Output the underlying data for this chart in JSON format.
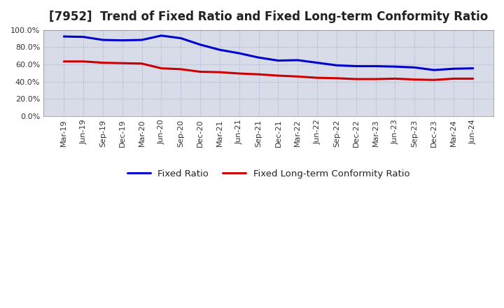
{
  "title": "[7952]  Trend of Fixed Ratio and Fixed Long-term Conformity Ratio",
  "x_labels": [
    "Mar-19",
    "Jun-19",
    "Sep-19",
    "Dec-19",
    "Mar-20",
    "Jun-20",
    "Sep-20",
    "Dec-20",
    "Mar-21",
    "Jun-21",
    "Sep-21",
    "Dec-21",
    "Mar-22",
    "Jun-22",
    "Sep-22",
    "Dec-22",
    "Mar-23",
    "Jun-23",
    "Sep-23",
    "Dec-23",
    "Mar-24",
    "Jun-24"
  ],
  "fixed_ratio": [
    92.5,
    92.0,
    88.5,
    88.0,
    88.5,
    93.5,
    90.5,
    83.0,
    77.0,
    73.0,
    68.0,
    64.5,
    65.0,
    62.0,
    59.0,
    58.0,
    58.0,
    57.5,
    56.5,
    53.5,
    55.0,
    55.5
  ],
  "fixed_lt_ratio": [
    63.5,
    63.5,
    62.0,
    61.5,
    61.0,
    55.5,
    54.5,
    51.5,
    51.0,
    49.5,
    48.5,
    47.0,
    46.0,
    44.5,
    44.0,
    43.0,
    43.0,
    43.5,
    42.5,
    42.0,
    43.5,
    43.5
  ],
  "fixed_ratio_color": "#0000cc",
  "fixed_lt_ratio_color": "#cc0000",
  "ylim": [
    0,
    100
  ],
  "yticks": [
    0,
    20,
    40,
    60,
    80,
    100
  ],
  "bg_color": "#ffffff",
  "plot_bg_color": "#d8dce8",
  "grid_color": "#aaaacc",
  "legend_fixed_ratio": "Fixed Ratio",
  "legend_fixed_lt_ratio": "Fixed Long-term Conformity Ratio",
  "line_width": 2.2,
  "title_fontsize": 12,
  "tick_fontsize": 8,
  "legend_fontsize": 9.5
}
